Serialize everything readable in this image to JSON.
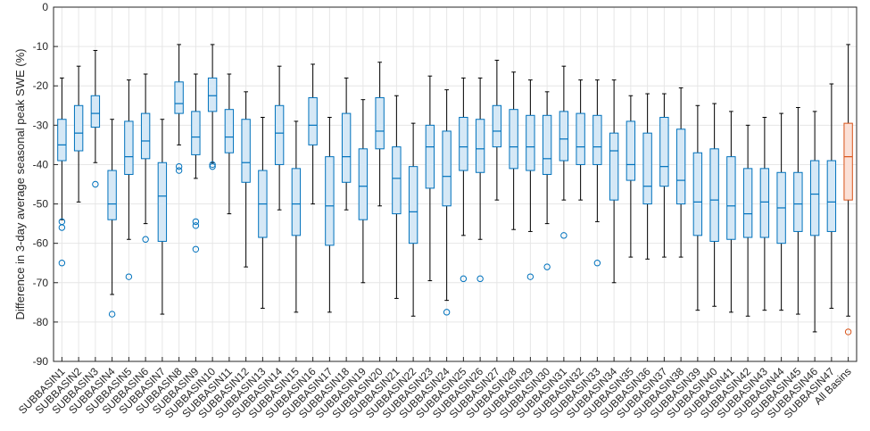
{
  "chart_data": {
    "type": "box",
    "title": "",
    "xlabel": "",
    "ylabel": "Difference in 3-day average seasonal peak SWE (%)",
    "ylim": [
      -90,
      0
    ],
    "yticks": [
      0,
      -10,
      -20,
      -30,
      -40,
      -50,
      -60,
      -70,
      -80,
      -90
    ],
    "grid": true,
    "colors": {
      "basin": "#0072BD",
      "basin_fill": "#d5e8f6",
      "all": "#D95319",
      "all_fill": "#fbe0d6",
      "whisker": "#000000"
    },
    "categories": [
      "SUBBASIN1",
      "SUBBASIN2",
      "SUBBASIN3",
      "SUBBASIN4",
      "SUBBASIN5",
      "SUBBASIN6",
      "SUBBASIN7",
      "SUBBASIN8",
      "SUBBASIN9",
      "SUBBASIN10",
      "SUBBASIN11",
      "SUBBASIN12",
      "SUBBASIN13",
      "SUBBASIN14",
      "SUBBASIN15",
      "SUBBASIN16",
      "SUBBASIN17",
      "SUBBASIN18",
      "SUBBASIN19",
      "SUBBASIN20",
      "SUBBASIN21",
      "SUBBASIN22",
      "SUBBASIN23",
      "SUBBASIN24",
      "SUBBASIN25",
      "SUBBASIN26",
      "SUBBASIN27",
      "SUBBASIN28",
      "SUBBASIN29",
      "SUBBASIN30",
      "SUBBASIN31",
      "SUBBASIN32",
      "SUBBASIN33",
      "SUBBASIN34",
      "SUBBASIN35",
      "SUBBASIN36",
      "SUBBASIN37",
      "SUBBASIN38",
      "SUBBASIN39",
      "SUBBASIN40",
      "SUBBASIN41",
      "SUBBASIN42",
      "SUBBASIN43",
      "SUBBASIN44",
      "SUBBASIN45",
      "SUBBASIN46",
      "SUBBASIN47",
      "All Basins"
    ],
    "boxes": [
      {
        "min": -54,
        "q1": -39,
        "median": -35,
        "q3": -28.5,
        "max": -18,
        "outliers": [
          -54.5,
          -56,
          -65
        ]
      },
      {
        "min": -49.5,
        "q1": -36.5,
        "median": -32,
        "q3": -25,
        "max": -15,
        "outliers": []
      },
      {
        "min": -39.5,
        "q1": -30.5,
        "median": -27,
        "q3": -22.5,
        "max": -11,
        "outliers": [
          -45
        ]
      },
      {
        "min": -73,
        "q1": -54,
        "median": -50,
        "q3": -41.5,
        "max": -28.5,
        "outliers": [
          -78
        ]
      },
      {
        "min": -59,
        "q1": -42.5,
        "median": -38,
        "q3": -29,
        "max": -18.5,
        "outliers": [
          -68.5
        ]
      },
      {
        "min": -55,
        "q1": -38.5,
        "median": -34,
        "q3": -27,
        "max": -17,
        "outliers": [
          -59
        ]
      },
      {
        "min": -78,
        "q1": -59.5,
        "median": -48,
        "q3": -39.5,
        "max": -28.5,
        "outliers": []
      },
      {
        "min": -35,
        "q1": -27,
        "median": -24.5,
        "q3": -19,
        "max": -9.5,
        "outliers": [
          -40.5,
          -41.5
        ]
      },
      {
        "min": -43.5,
        "q1": -37.5,
        "median": -33,
        "q3": -26.5,
        "max": -17,
        "outliers": [
          -54.5,
          -55.5,
          -61.5
        ]
      },
      {
        "min": -39.5,
        "q1": -26.5,
        "median": -22.5,
        "q3": -18,
        "max": -9.5,
        "outliers": [
          -40,
          -40.5
        ]
      },
      {
        "min": -52.5,
        "q1": -37,
        "median": -33,
        "q3": -26,
        "max": -17,
        "outliers": []
      },
      {
        "min": -66,
        "q1": -44.5,
        "median": -39.5,
        "q3": -28.5,
        "max": -21.5,
        "outliers": []
      },
      {
        "min": -76.5,
        "q1": -58.5,
        "median": -50,
        "q3": -41.5,
        "max": -28,
        "outliers": []
      },
      {
        "min": -51.5,
        "q1": -40,
        "median": -32,
        "q3": -25,
        "max": -15,
        "outliers": []
      },
      {
        "min": -77.5,
        "q1": -58,
        "median": -50,
        "q3": -41,
        "max": -29,
        "outliers": []
      },
      {
        "min": -50,
        "q1": -35,
        "median": -30,
        "q3": -23,
        "max": -14.5,
        "outliers": []
      },
      {
        "min": -77.5,
        "q1": -60.5,
        "median": -50.5,
        "q3": -38,
        "max": -28,
        "outliers": []
      },
      {
        "min": -51.5,
        "q1": -44.5,
        "median": -38,
        "q3": -27,
        "max": -18,
        "outliers": []
      },
      {
        "min": -70,
        "q1": -54,
        "median": -45.5,
        "q3": -36,
        "max": -23.5,
        "outliers": []
      },
      {
        "min": -50.5,
        "q1": -36,
        "median": -31.5,
        "q3": -23,
        "max": -14,
        "outliers": []
      },
      {
        "min": -74,
        "q1": -52.5,
        "median": -43.5,
        "q3": -35.5,
        "max": -22.5,
        "outliers": []
      },
      {
        "min": -78.5,
        "q1": -60,
        "median": -52,
        "q3": -40.5,
        "max": -29.5,
        "outliers": []
      },
      {
        "min": -69.5,
        "q1": -46,
        "median": -35.5,
        "q3": -30,
        "max": -17.5,
        "outliers": []
      },
      {
        "min": -74.5,
        "q1": -50.5,
        "median": -43,
        "q3": -31.5,
        "max": -21,
        "outliers": [
          -77.5
        ]
      },
      {
        "min": -58,
        "q1": -41.5,
        "median": -35.5,
        "q3": -28,
        "max": -18,
        "outliers": [
          -69
        ]
      },
      {
        "min": -59,
        "q1": -42,
        "median": -36,
        "q3": -28.5,
        "max": -18,
        "outliers": [
          -69
        ]
      },
      {
        "min": -49,
        "q1": -35.5,
        "median": -31.5,
        "q3": -25,
        "max": -13.5,
        "outliers": []
      },
      {
        "min": -56.5,
        "q1": -41,
        "median": -35.5,
        "q3": -26,
        "max": -16.5,
        "outliers": []
      },
      {
        "min": -57,
        "q1": -41.5,
        "median": -35.5,
        "q3": -27.5,
        "max": -18.5,
        "outliers": [
          -68.5
        ]
      },
      {
        "min": -55,
        "q1": -42.5,
        "median": -38.5,
        "q3": -27.5,
        "max": -21.5,
        "outliers": [
          -66
        ]
      },
      {
        "min": -49,
        "q1": -39,
        "median": -33.5,
        "q3": -26.5,
        "max": -15,
        "outliers": [
          -58
        ]
      },
      {
        "min": -49,
        "q1": -40,
        "median": -35.5,
        "q3": -27,
        "max": -18.5,
        "outliers": []
      },
      {
        "min": -54.5,
        "q1": -40,
        "median": -35.5,
        "q3": -27.5,
        "max": -18.5,
        "outliers": [
          -65
        ]
      },
      {
        "min": -70,
        "q1": -49,
        "median": -36.5,
        "q3": -32,
        "max": -18.5,
        "outliers": []
      },
      {
        "min": -63.5,
        "q1": -44,
        "median": -40,
        "q3": -29,
        "max": -22.5,
        "outliers": []
      },
      {
        "min": -64,
        "q1": -50,
        "median": -45.5,
        "q3": -32,
        "max": -22,
        "outliers": []
      },
      {
        "min": -63.5,
        "q1": -45.5,
        "median": -40.5,
        "q3": -28,
        "max": -22,
        "outliers": []
      },
      {
        "min": -63.5,
        "q1": -50,
        "median": -44,
        "q3": -31,
        "max": -20.5,
        "outliers": []
      },
      {
        "min": -77,
        "q1": -58,
        "median": -49.5,
        "q3": -37,
        "max": -25,
        "outliers": []
      },
      {
        "min": -76,
        "q1": -59.5,
        "median": -49,
        "q3": -36,
        "max": -24.5,
        "outliers": []
      },
      {
        "min": -77.5,
        "q1": -59,
        "median": -50.5,
        "q3": -38,
        "max": -26.5,
        "outliers": []
      },
      {
        "min": -78.5,
        "q1": -58.5,
        "median": -52.5,
        "q3": -41,
        "max": -30,
        "outliers": []
      },
      {
        "min": -77,
        "q1": -58.5,
        "median": -49.5,
        "q3": -41,
        "max": -28,
        "outliers": []
      },
      {
        "min": -77,
        "q1": -60,
        "median": -51,
        "q3": -42,
        "max": -27,
        "outliers": []
      },
      {
        "min": -78,
        "q1": -57,
        "median": -50,
        "q3": -42,
        "max": -25.5,
        "outliers": []
      },
      {
        "min": -82.5,
        "q1": -58,
        "median": -47.5,
        "q3": -39,
        "max": -26.5,
        "outliers": []
      },
      {
        "min": -76.5,
        "q1": -57,
        "median": -49.5,
        "q3": -39,
        "max": -19.5,
        "outliers": []
      },
      {
        "min": -78.5,
        "q1": -49,
        "median": -38,
        "q3": -29.5,
        "max": -9.5,
        "outliers": [
          -82.5
        ]
      }
    ]
  }
}
